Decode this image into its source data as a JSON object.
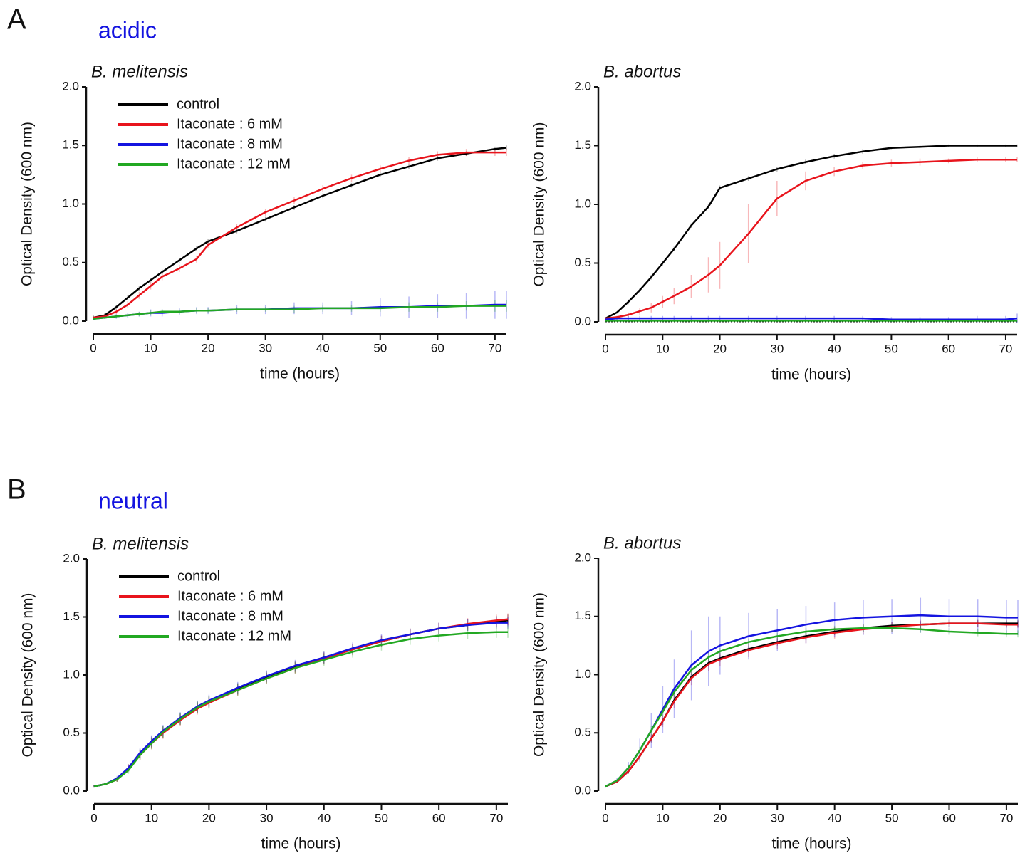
{
  "panels": [
    {
      "letter": "A",
      "condition": "acidic"
    },
    {
      "letter": "B",
      "condition": "neutral"
    }
  ],
  "chart_data": [
    {
      "type": "line",
      "title": "B. melitensis",
      "x_label": "time (hours)",
      "y_label": "Optical Density (600 nm)",
      "xlim": [
        0,
        72
      ],
      "xticks": [
        0,
        10,
        20,
        30,
        40,
        50,
        60,
        70
      ],
      "ylim": [
        0,
        2
      ],
      "yticks": [
        {
          "value": 0,
          "label": "0.0"
        },
        0.5,
        {
          "value": 1,
          "label": "1.0"
        },
        1.5,
        {
          "value": 2,
          "label": "2.0"
        }
      ],
      "legend": "upper left",
      "zero_line": false,
      "x": [
        0,
        2,
        4,
        6,
        8,
        10,
        12,
        15,
        18,
        20,
        25,
        30,
        35,
        40,
        45,
        50,
        55,
        60,
        65,
        70,
        72
      ],
      "series": [
        {
          "name": "control",
          "color": "#000000",
          "values": [
            0.03,
            0.05,
            0.12,
            0.2,
            0.28,
            0.35,
            0.42,
            0.52,
            0.62,
            0.68,
            0.77,
            0.87,
            0.97,
            1.07,
            1.16,
            1.25,
            1.32,
            1.39,
            1.43,
            1.47,
            1.48
          ],
          "errors": [
            0.02,
            0.02,
            0.02,
            0.02,
            0.02,
            0.02,
            0.02,
            0.02,
            0.02,
            0.02,
            0.02,
            0.02,
            0.02,
            0.02,
            0.02,
            0.02,
            0.02,
            0.02,
            0.02,
            0.02,
            0.02
          ]
        },
        {
          "name": "Itaconate : 6 mM",
          "color": "#e8141c",
          "values": [
            0.03,
            0.04,
            0.08,
            0.14,
            0.22,
            0.3,
            0.38,
            0.45,
            0.53,
            0.65,
            0.8,
            0.93,
            1.03,
            1.13,
            1.22,
            1.3,
            1.37,
            1.42,
            1.44,
            1.44,
            1.44
          ],
          "errors": [
            0.01,
            0.02,
            0.02,
            0.03,
            0.03,
            0.03,
            0.03,
            0.03,
            0.03,
            0.03,
            0.03,
            0.03,
            0.03,
            0.03,
            0.03,
            0.03,
            0.03,
            0.03,
            0.03,
            0.03,
            0.03
          ]
        },
        {
          "name": "Itaconate : 8 mM",
          "color": "#1414e0",
          "values": [
            0.02,
            0.03,
            0.04,
            0.05,
            0.06,
            0.07,
            0.07,
            0.08,
            0.09,
            0.09,
            0.1,
            0.1,
            0.11,
            0.11,
            0.11,
            0.12,
            0.12,
            0.13,
            0.13,
            0.14,
            0.14
          ],
          "errors": [
            0.01,
            0.01,
            0.02,
            0.02,
            0.02,
            0.03,
            0.03,
            0.03,
            0.03,
            0.03,
            0.04,
            0.04,
            0.05,
            0.05,
            0.06,
            0.08,
            0.09,
            0.1,
            0.11,
            0.12,
            0.12
          ]
        },
        {
          "name": "Itaconate : 12 mM",
          "color": "#22a822",
          "values": [
            0.02,
            0.03,
            0.04,
            0.05,
            0.06,
            0.07,
            0.08,
            0.08,
            0.09,
            0.09,
            0.1,
            0.1,
            0.1,
            0.11,
            0.11,
            0.11,
            0.12,
            0.12,
            0.13,
            0.13,
            0.13
          ],
          "errors": [
            0.01,
            0.01,
            0.01,
            0.01,
            0.02,
            0.02,
            0.02,
            0.02,
            0.02,
            0.02,
            0.02,
            0.02,
            0.03,
            0.03,
            0.03,
            0.03,
            0.04,
            0.04,
            0.04,
            0.05,
            0.05
          ]
        }
      ]
    },
    {
      "type": "line",
      "title": "B. abortus",
      "x_label": "time (hours)",
      "y_label": "Optical Density (600 nm)",
      "xlim": [
        0,
        72
      ],
      "xticks": [
        0,
        10,
        20,
        30,
        40,
        50,
        60,
        70
      ],
      "ylim": [
        0,
        2
      ],
      "yticks": [
        {
          "value": 0,
          "label": "0.0"
        },
        0.5,
        {
          "value": 1,
          "label": "1.0"
        },
        1.5,
        {
          "value": 2,
          "label": "2.0"
        }
      ],
      "legend": "none",
      "zero_line": true,
      "x": [
        0,
        2,
        4,
        6,
        8,
        10,
        12,
        15,
        18,
        20,
        25,
        30,
        35,
        40,
        45,
        50,
        55,
        60,
        65,
        70,
        72
      ],
      "series": [
        {
          "name": "control",
          "color": "#000000",
          "values": [
            0.03,
            0.08,
            0.17,
            0.27,
            0.38,
            0.5,
            0.62,
            0.82,
            0.98,
            1.14,
            1.22,
            1.3,
            1.36,
            1.41,
            1.45,
            1.48,
            1.49,
            1.5,
            1.5,
            1.5,
            1.5
          ],
          "errors": [
            0.01,
            0.01,
            0.02,
            0.02,
            0.02,
            0.02,
            0.02,
            0.02,
            0.02,
            0.02,
            0.02,
            0.02,
            0.02,
            0.02,
            0.02,
            0.01,
            0.01,
            0.01,
            0.01,
            0.01,
            0.01
          ]
        },
        {
          "name": "Itaconate : 6 mM",
          "color": "#e8141c",
          "values": [
            0.03,
            0.04,
            0.06,
            0.09,
            0.12,
            0.17,
            0.22,
            0.3,
            0.4,
            0.48,
            0.75,
            1.05,
            1.2,
            1.28,
            1.33,
            1.35,
            1.36,
            1.37,
            1.38,
            1.38,
            1.38
          ],
          "errors": [
            0.01,
            0.01,
            0.02,
            0.03,
            0.04,
            0.05,
            0.07,
            0.1,
            0.15,
            0.2,
            0.25,
            0.15,
            0.08,
            0.04,
            0.03,
            0.03,
            0.03,
            0.02,
            0.02,
            0.02,
            0.02
          ]
        },
        {
          "name": "Itaconate : 8 mM",
          "color": "#1414e0",
          "values": [
            0.02,
            0.03,
            0.03,
            0.03,
            0.03,
            0.03,
            0.03,
            0.03,
            0.03,
            0.03,
            0.03,
            0.03,
            0.03,
            0.03,
            0.03,
            0.02,
            0.02,
            0.02,
            0.02,
            0.02,
            0.03
          ],
          "errors": [
            0.01,
            0.02,
            0.02,
            0.02,
            0.02,
            0.02,
            0.02,
            0.02,
            0.02,
            0.02,
            0.02,
            0.02,
            0.02,
            0.02,
            0.02,
            0.02,
            0.02,
            0.02,
            0.03,
            0.03,
            0.04
          ]
        },
        {
          "name": "Itaconate : 12 mM",
          "color": "#22a822",
          "values": [
            0.01,
            0.01,
            0.01,
            0.01,
            0.01,
            0.01,
            0.01,
            0.01,
            0.01,
            0.01,
            0.01,
            0.01,
            0.01,
            0.01,
            0.01,
            0.01,
            0.01,
            0.01,
            0.01,
            0.01,
            0.01
          ],
          "errors": [
            0.01,
            0.01,
            0.01,
            0.01,
            0.01,
            0.01,
            0.01,
            0.01,
            0.01,
            0.01,
            0.01,
            0.01,
            0.01,
            0.01,
            0.01,
            0.01,
            0.01,
            0.01,
            0.01,
            0.01,
            0.01
          ]
        }
      ]
    },
    {
      "type": "line",
      "title": "B. melitensis",
      "x_label": "time (hours)",
      "y_label": "Optical Density (600 nm)",
      "xlim": [
        0,
        72
      ],
      "xticks": [
        0,
        10,
        20,
        30,
        40,
        50,
        60,
        70
      ],
      "ylim": [
        0,
        2
      ],
      "yticks": [
        {
          "value": 0,
          "label": "0.0"
        },
        0.5,
        {
          "value": 1,
          "label": "1.0"
        },
        1.5,
        {
          "value": 2,
          "label": "2.0"
        }
      ],
      "legend": "upper left",
      "zero_line": false,
      "x": [
        0,
        2,
        4,
        6,
        8,
        10,
        12,
        15,
        18,
        20,
        25,
        30,
        35,
        40,
        45,
        50,
        55,
        60,
        65,
        70,
        72
      ],
      "series": [
        {
          "name": "control",
          "color": "#000000",
          "values": [
            0.04,
            0.06,
            0.1,
            0.2,
            0.32,
            0.42,
            0.51,
            0.62,
            0.72,
            0.77,
            0.88,
            0.98,
            1.07,
            1.15,
            1.22,
            1.29,
            1.35,
            1.4,
            1.43,
            1.46,
            1.47
          ],
          "errors": [
            0.01,
            0.01,
            0.02,
            0.03,
            0.04,
            0.05,
            0.05,
            0.05,
            0.05,
            0.05,
            0.05,
            0.05,
            0.05,
            0.05,
            0.05,
            0.05,
            0.05,
            0.05,
            0.05,
            0.05,
            0.05
          ]
        },
        {
          "name": "Itaconate : 6 mM",
          "color": "#e8141c",
          "values": [
            0.04,
            0.06,
            0.1,
            0.2,
            0.31,
            0.41,
            0.5,
            0.61,
            0.71,
            0.76,
            0.87,
            0.97,
            1.06,
            1.14,
            1.22,
            1.29,
            1.35,
            1.4,
            1.44,
            1.47,
            1.48
          ],
          "errors": [
            0.01,
            0.01,
            0.02,
            0.03,
            0.04,
            0.05,
            0.05,
            0.05,
            0.05,
            0.05,
            0.05,
            0.05,
            0.05,
            0.05,
            0.05,
            0.05,
            0.05,
            0.05,
            0.05,
            0.05,
            0.05
          ]
        },
        {
          "name": "Itaconate : 8 mM",
          "color": "#1414e0",
          "values": [
            0.04,
            0.06,
            0.11,
            0.2,
            0.33,
            0.43,
            0.52,
            0.63,
            0.73,
            0.78,
            0.89,
            0.99,
            1.08,
            1.15,
            1.23,
            1.3,
            1.35,
            1.4,
            1.43,
            1.45,
            1.45
          ],
          "errors": [
            0.01,
            0.01,
            0.02,
            0.03,
            0.04,
            0.05,
            0.05,
            0.05,
            0.05,
            0.05,
            0.05,
            0.05,
            0.05,
            0.05,
            0.05,
            0.05,
            0.05,
            0.05,
            0.05,
            0.05,
            0.05
          ]
        },
        {
          "name": "Itaconate : 12 mM",
          "color": "#22a822",
          "values": [
            0.04,
            0.06,
            0.1,
            0.18,
            0.31,
            0.41,
            0.51,
            0.62,
            0.72,
            0.77,
            0.87,
            0.97,
            1.06,
            1.13,
            1.2,
            1.26,
            1.31,
            1.34,
            1.36,
            1.37,
            1.37
          ],
          "errors": [
            0.01,
            0.01,
            0.02,
            0.03,
            0.04,
            0.05,
            0.05,
            0.05,
            0.05,
            0.05,
            0.05,
            0.05,
            0.05,
            0.05,
            0.05,
            0.05,
            0.05,
            0.05,
            0.05,
            0.05,
            0.05
          ]
        }
      ]
    },
    {
      "type": "line",
      "title": "B. abortus",
      "x_label": "time (hours)",
      "y_label": "Optical Density (600 nm)",
      "xlim": [
        0,
        72
      ],
      "xticks": [
        0,
        10,
        20,
        30,
        40,
        50,
        60,
        70
      ],
      "ylim": [
        0,
        2
      ],
      "yticks": [
        {
          "value": 0,
          "label": "0.0"
        },
        0.5,
        {
          "value": 1,
          "label": "1.0"
        },
        1.5,
        {
          "value": 2,
          "label": "2.0"
        }
      ],
      "legend": "none",
      "zero_line": false,
      "x": [
        0,
        2,
        4,
        6,
        8,
        10,
        12,
        15,
        18,
        20,
        25,
        30,
        35,
        40,
        45,
        50,
        55,
        60,
        65,
        70,
        72
      ],
      "series": [
        {
          "name": "control",
          "color": "#000000",
          "values": [
            0.04,
            0.08,
            0.17,
            0.3,
            0.45,
            0.6,
            0.78,
            0.98,
            1.1,
            1.14,
            1.22,
            1.28,
            1.33,
            1.37,
            1.4,
            1.42,
            1.43,
            1.44,
            1.44,
            1.44,
            1.44
          ],
          "errors": [
            0.01,
            0.01,
            0.02,
            0.03,
            0.03,
            0.03,
            0.03,
            0.03,
            0.03,
            0.03,
            0.03,
            0.03,
            0.03,
            0.03,
            0.03,
            0.03,
            0.03,
            0.03,
            0.03,
            0.03,
            0.03
          ]
        },
        {
          "name": "Itaconate : 6 mM",
          "color": "#e8141c",
          "values": [
            0.04,
            0.08,
            0.17,
            0.3,
            0.45,
            0.6,
            0.77,
            0.97,
            1.09,
            1.13,
            1.21,
            1.27,
            1.32,
            1.36,
            1.39,
            1.41,
            1.43,
            1.44,
            1.44,
            1.43,
            1.43
          ],
          "errors": [
            0.01,
            0.01,
            0.02,
            0.03,
            0.04,
            0.05,
            0.06,
            0.06,
            0.06,
            0.06,
            0.06,
            0.05,
            0.05,
            0.05,
            0.04,
            0.04,
            0.04,
            0.03,
            0.03,
            0.03,
            0.03
          ]
        },
        {
          "name": "Itaconate : 8 mM",
          "color": "#1414e0",
          "values": [
            0.04,
            0.09,
            0.2,
            0.35,
            0.52,
            0.7,
            0.88,
            1.08,
            1.2,
            1.25,
            1.33,
            1.38,
            1.43,
            1.47,
            1.49,
            1.5,
            1.51,
            1.5,
            1.5,
            1.49,
            1.49
          ],
          "errors": [
            0.01,
            0.02,
            0.05,
            0.1,
            0.15,
            0.2,
            0.25,
            0.3,
            0.3,
            0.25,
            0.2,
            0.18,
            0.16,
            0.15,
            0.15,
            0.15,
            0.15,
            0.15,
            0.15,
            0.15,
            0.15
          ]
        },
        {
          "name": "Itaconate : 12 mM",
          "color": "#22a822",
          "values": [
            0.04,
            0.09,
            0.2,
            0.35,
            0.52,
            0.68,
            0.85,
            1.04,
            1.15,
            1.2,
            1.28,
            1.33,
            1.37,
            1.39,
            1.4,
            1.4,
            1.39,
            1.37,
            1.36,
            1.35,
            1.35
          ],
          "errors": [
            0.01,
            0.01,
            0.02,
            0.03,
            0.04,
            0.04,
            0.04,
            0.04,
            0.04,
            0.03,
            0.03,
            0.03,
            0.03,
            0.03,
            0.03,
            0.03,
            0.03,
            0.03,
            0.03,
            0.03,
            0.03
          ]
        }
      ]
    }
  ]
}
